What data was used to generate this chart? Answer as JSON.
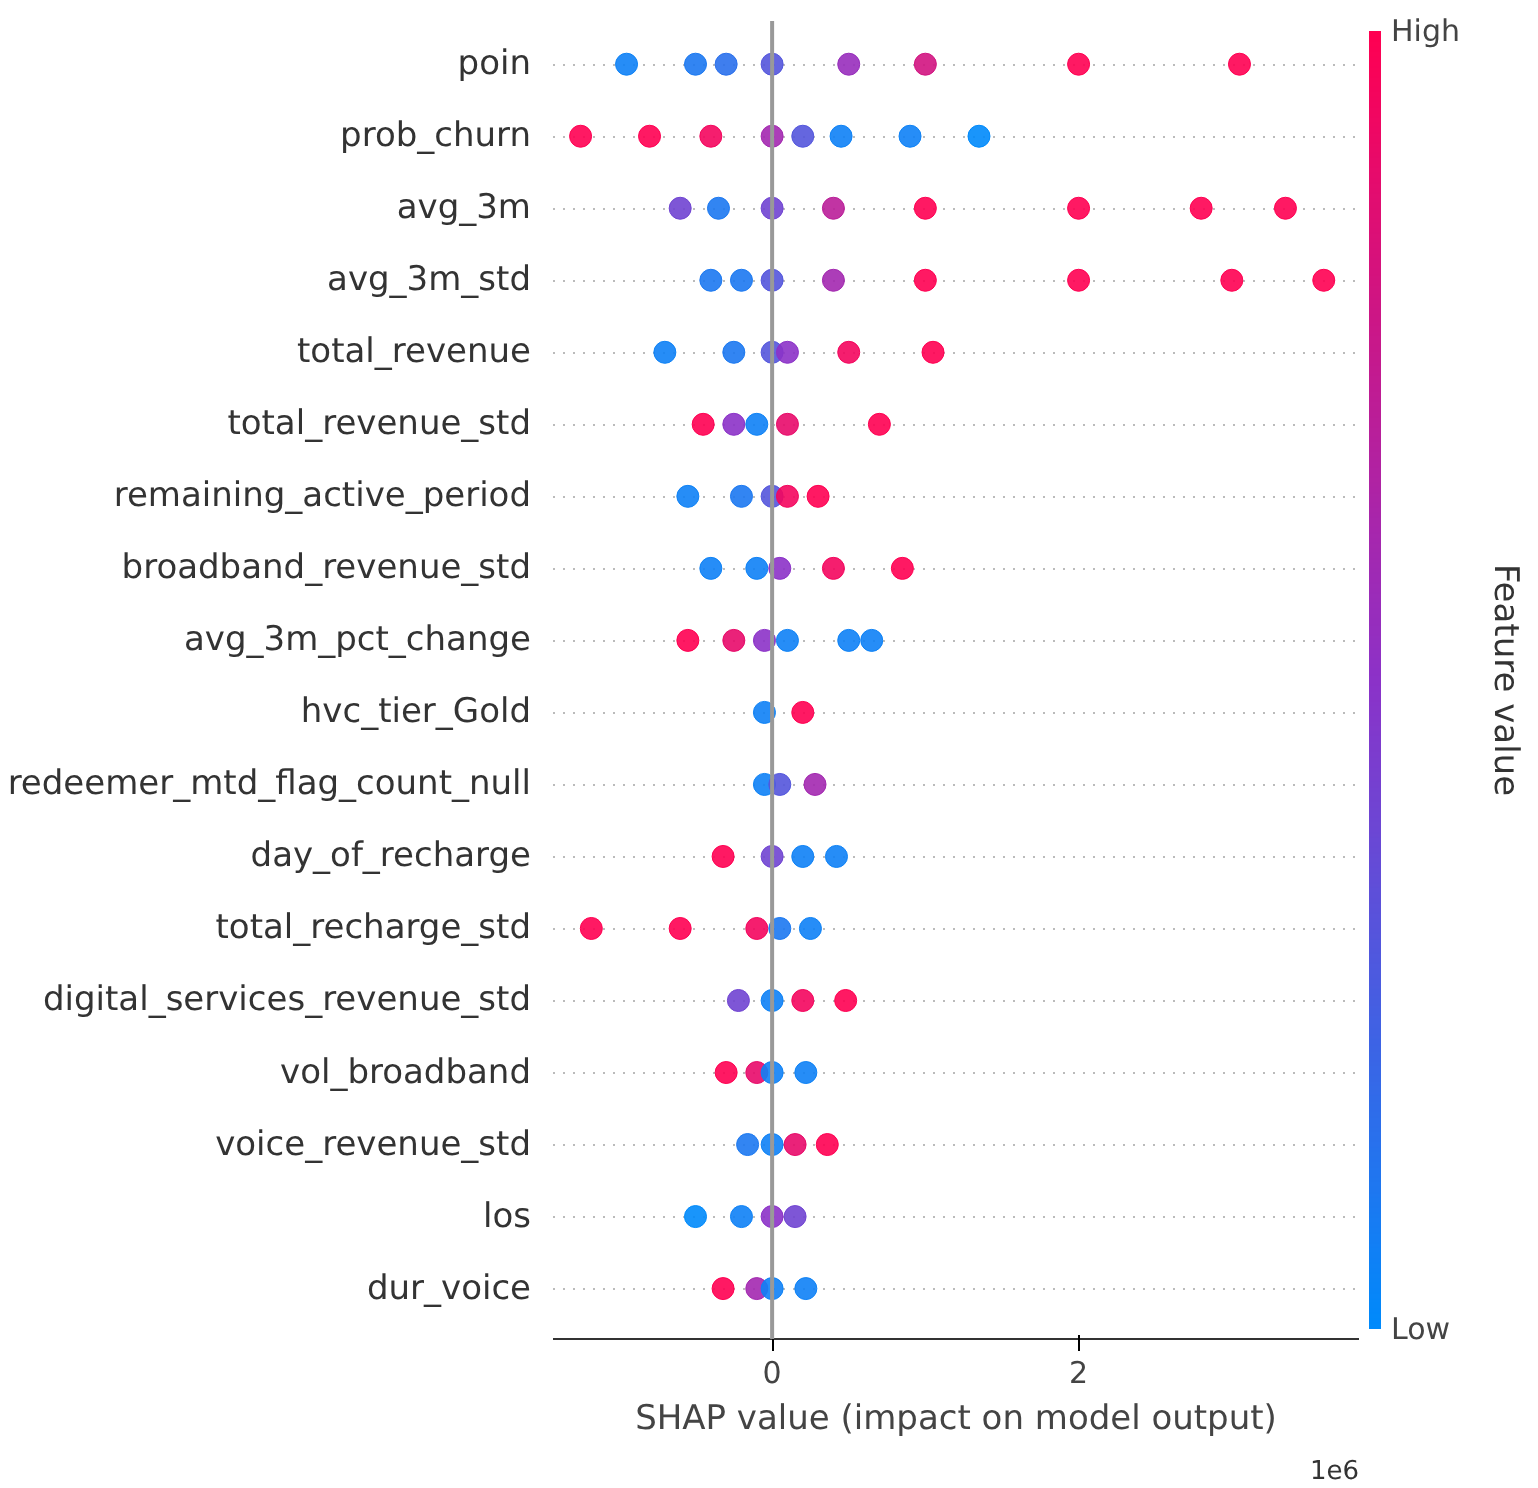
{
  "chart_data": {
    "type": "scatter",
    "orientation": "horizontal",
    "xlabel": "SHAP value (impact on model output)",
    "clabel": "Feature value",
    "categories": [
      "poin",
      "prob_churn",
      "avg_3m",
      "avg_3m_std",
      "total_revenue",
      "total_revenue_std",
      "remaining_active_period",
      "broadband_revenue_std",
      "avg_3m_pct_change",
      "hvc_tier_Gold",
      "redeemer_mtd_flag_count_null",
      "day_of_recharge",
      "total_recharge_std",
      "digital_services_revenue_std",
      "vol_broadband",
      "voice_revenue_std",
      "los",
      "dur_voice"
    ],
    "xlim": [
      -1.43,
      3.83
    ],
    "xticks": [
      0,
      2
    ],
    "clim": [
      0,
      1
    ],
    "cticks": [
      {
        "value": 0,
        "label": "Low"
      },
      {
        "value": 1,
        "label": "High"
      }
    ],
    "grid": "y",
    "marker": "circle",
    "ref_lines": [
      {
        "axis": "x",
        "value": 0,
        "color": "#999999"
      }
    ],
    "annotations": [
      "1e6"
    ],
    "series": [
      {
        "x": [
          "poin",
          "poin",
          "poin",
          "poin",
          "poin",
          "poin",
          "poin",
          "poin"
        ],
        "values": [
          -0.95,
          -0.5,
          -0.3,
          0,
          0.5,
          1.0,
          2.0,
          3.05
        ],
        "cvalues": [
          0.05,
          0.1,
          0.15,
          0.3,
          0.55,
          0.8,
          1,
          1
        ],
        "colors": [
          "#0e81f6",
          "#1c78f1",
          "#2a70ec",
          "#5455dc",
          "#982dbc",
          "#d11481",
          "#ff0052",
          "#ff0052"
        ]
      },
      {
        "x": [
          "prob_churn",
          "prob_churn",
          "prob_churn",
          "prob_churn",
          "prob_churn",
          "prob_churn",
          "prob_churn",
          "prob_churn"
        ],
        "values": [
          -1.25,
          -0.8,
          -0.4,
          0,
          0.2,
          0.45,
          0.9,
          1.35
        ],
        "cvalues": [
          1,
          1,
          0.95,
          0.6,
          0.3,
          0.05,
          0.05,
          0
        ],
        "colors": [
          "#ff0052",
          "#ff0052",
          "#f4055e",
          "#a328b0",
          "#5455dc",
          "#0e81f6",
          "#0e81f6",
          "#008afb"
        ]
      },
      {
        "x": [
          "avg_3m",
          "avg_3m",
          "avg_3m",
          "avg_3m",
          "avg_3m",
          "avg_3m",
          "avg_3m",
          "avg_3m"
        ],
        "values": [
          -0.6,
          -0.35,
          0,
          0.4,
          1.0,
          2.0,
          2.8,
          3.35
        ],
        "cvalues": [
          0.4,
          0.1,
          0.4,
          0.7,
          1,
          1,
          1,
          1
        ],
        "colors": [
          "#7044d2",
          "#1c78f1",
          "#7044d2",
          "#ba1e99",
          "#ff0052",
          "#ff0052",
          "#ff0052",
          "#ff0052"
        ]
      },
      {
        "x": [
          "avg_3m_std",
          "avg_3m_std",
          "avg_3m_std",
          "avg_3m_std",
          "avg_3m_std",
          "avg_3m_std",
          "avg_3m_std",
          "avg_3m_std"
        ],
        "values": [
          -0.4,
          -0.2,
          0,
          0.4,
          1,
          2,
          3,
          3.6
        ],
        "cvalues": [
          0.1,
          0.1,
          0.3,
          0.6,
          1,
          1,
          1,
          1
        ],
        "colors": [
          "#1c78f1",
          "#1c78f1",
          "#5455dc",
          "#a328b0",
          "#ff0052",
          "#ff0052",
          "#ff0052",
          "#ff0052"
        ]
      },
      {
        "x": [
          "total_revenue",
          "total_revenue",
          "total_revenue",
          "total_revenue",
          "total_revenue",
          "total_revenue"
        ],
        "values": [
          -0.7,
          -0.25,
          0,
          0.1,
          0.5,
          1.05
        ],
        "cvalues": [
          0.05,
          0.1,
          0.3,
          0.5,
          0.95,
          1
        ],
        "colors": [
          "#0e81f6",
          "#1c78f1",
          "#5455dc",
          "#8c32c8",
          "#f4055e",
          "#ff0052"
        ]
      },
      {
        "x": [
          "total_revenue_std",
          "total_revenue_std",
          "total_revenue_std",
          "total_revenue_std",
          "total_revenue_std"
        ],
        "values": [
          -0.45,
          -0.25,
          -0.1,
          0.1,
          0.7
        ],
        "cvalues": [
          1,
          0.5,
          0.05,
          0.9,
          1
        ],
        "colors": [
          "#ff0052",
          "#8c32c8",
          "#0e81f6",
          "#e80a6a",
          "#ff0052"
        ]
      },
      {
        "x": [
          "remaining_active_period",
          "remaining_active_period",
          "remaining_active_period",
          "remaining_active_period",
          "remaining_active_period"
        ],
        "values": [
          -0.55,
          -0.2,
          0,
          0.1,
          0.3
        ],
        "cvalues": [
          0.05,
          0.1,
          0.3,
          0.95,
          1
        ],
        "colors": [
          "#0e81f6",
          "#1c78f1",
          "#5455dc",
          "#f4055e",
          "#ff0052"
        ]
      },
      {
        "x": [
          "broadband_revenue_std",
          "broadband_revenue_std",
          "broadband_revenue_std",
          "broadband_revenue_std",
          "broadband_revenue_std"
        ],
        "values": [
          -0.4,
          -0.1,
          0.05,
          0.4,
          0.85
        ],
        "cvalues": [
          0.05,
          0.05,
          0.5,
          0.95,
          1
        ],
        "colors": [
          "#0e81f6",
          "#0e81f6",
          "#8c32c8",
          "#f4055e",
          "#ff0052"
        ]
      },
      {
        "x": [
          "avg_3m_pct_change",
          "avg_3m_pct_change",
          "avg_3m_pct_change",
          "avg_3m_pct_change",
          "avg_3m_pct_change",
          "avg_3m_pct_change"
        ],
        "values": [
          -0.55,
          -0.25,
          -0.05,
          0.1,
          0.5,
          0.65
        ],
        "cvalues": [
          1,
          0.9,
          0.5,
          0.05,
          0.05,
          0.05
        ],
        "colors": [
          "#ff0052",
          "#e80a6a",
          "#8c32c8",
          "#0e81f6",
          "#0e81f6",
          "#0e81f6"
        ]
      },
      {
        "x": [
          "hvc_tier_Gold",
          "hvc_tier_Gold"
        ],
        "values": [
          -0.05,
          0.2
        ],
        "cvalues": [
          0.05,
          1
        ],
        "colors": [
          "#0e81f6",
          "#ff0052"
        ]
      },
      {
        "x": [
          "redeemer_mtd_flag_count_null",
          "redeemer_mtd_flag_count_null",
          "redeemer_mtd_flag_count_null"
        ],
        "values": [
          -0.05,
          0.05,
          0.28
        ],
        "cvalues": [
          0.05,
          0.3,
          0.6
        ],
        "colors": [
          "#0e81f6",
          "#5455dc",
          "#a328b0"
        ]
      },
      {
        "x": [
          "day_of_recharge",
          "day_of_recharge",
          "day_of_recharge",
          "day_of_recharge"
        ],
        "values": [
          -0.32,
          0,
          0.2,
          0.42
        ],
        "cvalues": [
          1,
          0.4,
          0.05,
          0.05
        ],
        "colors": [
          "#ff0052",
          "#7044d2",
          "#0e81f6",
          "#0e81f6"
        ]
      },
      {
        "x": [
          "total_recharge_std",
          "total_recharge_std",
          "total_recharge_std",
          "total_recharge_std",
          "total_recharge_std"
        ],
        "values": [
          -1.18,
          -0.6,
          -0.1,
          0.05,
          0.25
        ],
        "cvalues": [
          1,
          1,
          0.95,
          0.1,
          0.05
        ],
        "colors": [
          "#ff0052",
          "#ff0052",
          "#f4055e",
          "#1c78f1",
          "#0e81f6"
        ]
      },
      {
        "x": [
          "digital_services_revenue_std",
          "digital_services_revenue_std",
          "digital_services_revenue_std",
          "digital_services_revenue_std"
        ],
        "values": [
          -0.22,
          0,
          0.2,
          0.48
        ],
        "cvalues": [
          0.4,
          0.05,
          0.95,
          1
        ],
        "colors": [
          "#7044d2",
          "#0e81f6",
          "#f4055e",
          "#ff0052"
        ]
      },
      {
        "x": [
          "vol_broadband",
          "vol_broadband",
          "vol_broadband",
          "vol_broadband"
        ],
        "values": [
          -0.3,
          -0.1,
          0,
          0.22
        ],
        "cvalues": [
          1,
          0.9,
          0.05,
          0.05
        ],
        "colors": [
          "#ff0052",
          "#e80a6a",
          "#0e81f6",
          "#0e81f6"
        ]
      },
      {
        "x": [
          "voice_revenue_std",
          "voice_revenue_std",
          "voice_revenue_std",
          "voice_revenue_std"
        ],
        "values": [
          -0.16,
          0,
          0.15,
          0.36
        ],
        "cvalues": [
          0.1,
          0.05,
          0.9,
          1
        ],
        "colors": [
          "#1c78f1",
          "#0e81f6",
          "#e80a6a",
          "#ff0052"
        ]
      },
      {
        "x": [
          "los",
          "los",
          "los",
          "los"
        ],
        "values": [
          -0.5,
          -0.2,
          0,
          0.15
        ],
        "cvalues": [
          0,
          0.05,
          0.5,
          0.4
        ],
        "colors": [
          "#008afb",
          "#0e81f6",
          "#8c32c8",
          "#7044d2"
        ]
      },
      {
        "x": [
          "dur_voice",
          "dur_voice",
          "dur_voice",
          "dur_voice"
        ],
        "values": [
          -0.32,
          -0.1,
          0,
          0.22
        ],
        "cvalues": [
          1,
          0.6,
          0.05,
          0.05
        ],
        "colors": [
          "#ff0052",
          "#a328b0",
          "#0e81f6",
          "#0e81f6"
        ]
      }
    ]
  }
}
